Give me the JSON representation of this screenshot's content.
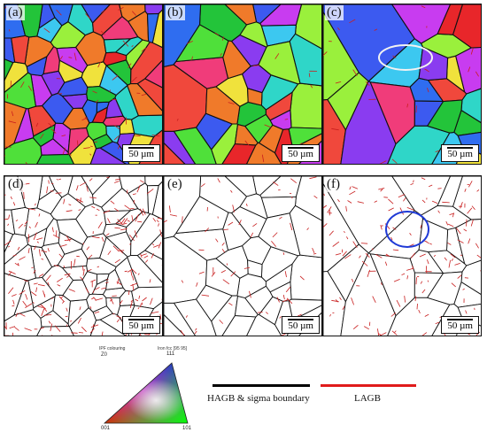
{
  "panels": [
    {
      "id": "a",
      "label": "(a)",
      "scale": "50 µm"
    },
    {
      "id": "b",
      "label": "(b)",
      "scale": "50 µm"
    },
    {
      "id": "c",
      "label": "(c)",
      "scale": "50 µm"
    },
    {
      "id": "d",
      "label": "(d)",
      "scale": "50 µm"
    },
    {
      "id": "e",
      "label": "(e)",
      "scale": "50 µm"
    },
    {
      "id": "f",
      "label": "(f)",
      "scale": "50 µm"
    }
  ],
  "ipf": {
    "title1": "IPF colouring",
    "title2": "Iron fcc [95 95]",
    "z_label": "Z0",
    "v001": "001",
    "v101": "101",
    "v111": "111"
  },
  "legend": {
    "hagb_label": "HAGB & sigma boundary",
    "hagb_color": "#000000",
    "lagb_label": "LAGB",
    "lagb_color": "#e01b1b"
  }
}
